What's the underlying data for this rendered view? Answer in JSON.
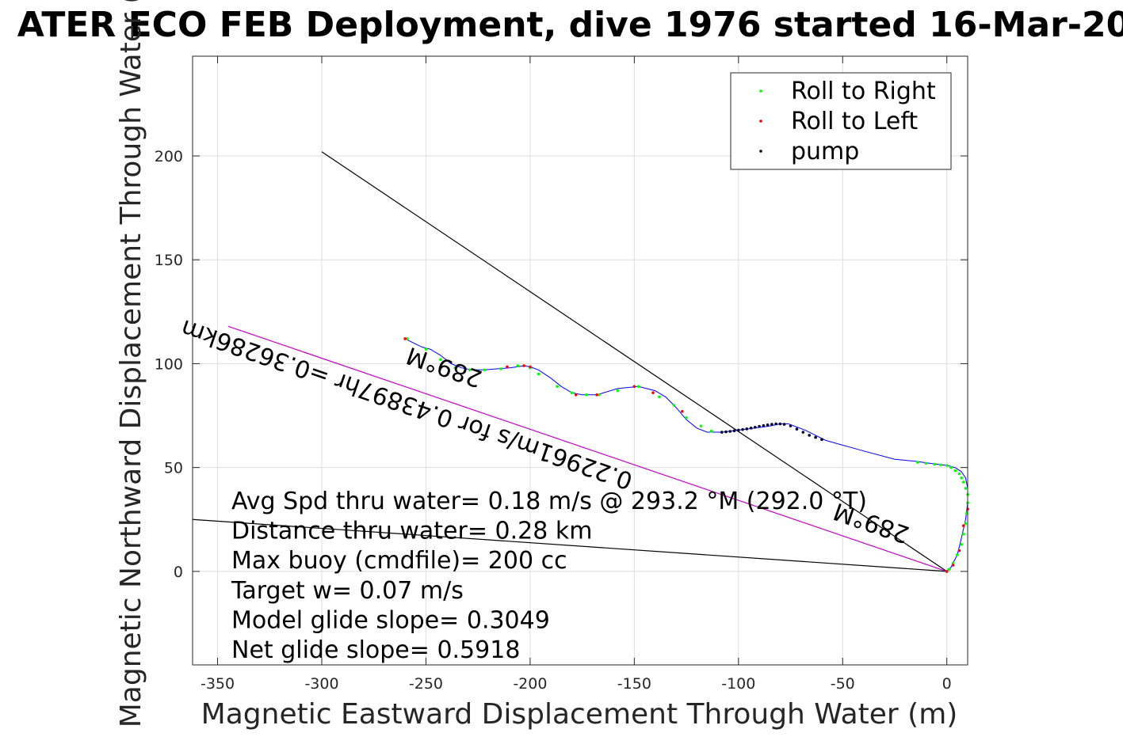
{
  "chart_data": {
    "type": "scatter",
    "title": "ATER ECO FEB Deployment, dive 1976 started 16-Mar-20",
    "xlabel": "Magnetic Eastward Displacement Through Water (m)",
    "ylabel": "Magnetic Northward Displacement Through Water (",
    "xlim": [
      -362,
      10
    ],
    "ylim": [
      -45,
      248
    ],
    "xticks": [
      -350,
      -300,
      -250,
      -200,
      -150,
      -100,
      -50,
      0
    ],
    "yticks": [
      0,
      50,
      100,
      150,
      200
    ],
    "xtick_labels": [
      "-350",
      "-300",
      "-250",
      "-200",
      "-150",
      "-100",
      "-50",
      "0"
    ],
    "ytick_labels": [
      "0",
      "50",
      "100",
      "150",
      "200"
    ],
    "grid": true,
    "legend": {
      "placement": "top-right",
      "entries": [
        {
          "label": "Roll to Right",
          "color": "#00ff00"
        },
        {
          "label": "Roll to Left",
          "color": "#ff0000"
        },
        {
          "label": "pump",
          "color": "#000000"
        }
      ]
    },
    "track": {
      "color": "#0000ff",
      "x": [
        0,
        2,
        5,
        7,
        9,
        10,
        10,
        9,
        7,
        4,
        0,
        -4,
        -8,
        -15,
        -25,
        -40,
        -58,
        -68,
        -76,
        -80,
        -85,
        -92,
        -100,
        -108,
        -115,
        -120,
        -125,
        -130,
        -135,
        -140,
        -148,
        -158,
        -168,
        -175,
        -180,
        -185,
        -190,
        -196,
        -200,
        -203,
        -206,
        -210,
        -216,
        -222,
        -228,
        -233,
        -238,
        -243,
        -248,
        -252,
        -256,
        -260
      ],
      "y": [
        0,
        2,
        8,
        16,
        25,
        33,
        40,
        45,
        48,
        50,
        51,
        51.5,
        52,
        53,
        54,
        58,
        63,
        68,
        71,
        71,
        70,
        69,
        68,
        67,
        67,
        69,
        73,
        79,
        84,
        87,
        89,
        88,
        85,
        85,
        86,
        89,
        93,
        97,
        98.5,
        99,
        98.5,
        98,
        97.5,
        97,
        97,
        98,
        100,
        104,
        107,
        108,
        110,
        112
      ]
    },
    "roll_right_x": [
      0,
      1,
      3,
      5,
      7,
      8,
      9,
      9.5,
      10,
      10,
      9,
      8,
      7,
      6,
      4,
      2,
      0,
      -3,
      -6,
      -10,
      -14,
      -108,
      -113,
      -118,
      -125,
      -131,
      -138,
      -148,
      -158,
      -167,
      -173,
      -180,
      -187,
      -196,
      -200,
      -206,
      -214,
      -222,
      -229,
      -236,
      -243,
      -250,
      -259
    ],
    "roll_right_y": [
      0,
      1,
      4,
      8,
      13,
      18,
      23,
      28,
      33,
      37,
      40,
      43,
      45,
      47,
      48.5,
      50,
      51,
      51.3,
      51.6,
      52,
      52.5,
      67,
      67.5,
      70,
      74,
      80,
      84,
      89,
      87,
      85,
      85,
      86,
      89,
      95,
      98,
      99,
      97.5,
      97,
      97,
      98,
      102,
      107,
      112
    ],
    "roll_left_x": [
      0,
      3,
      6,
      8,
      10,
      -150,
      -127,
      -141,
      -168,
      -178,
      -200,
      -203,
      -211,
      -260
    ],
    "roll_left_y": [
      0,
      3,
      10,
      22,
      30,
      89,
      77,
      86,
      85,
      85,
      98.5,
      99,
      98.5,
      112
    ],
    "pump_x": [
      -60,
      -63,
      -66,
      -69,
      -72,
      -75,
      -78,
      -80,
      -82,
      -84,
      -86,
      -88,
      -90,
      -92,
      -94,
      -96,
      -98,
      -100,
      -102,
      -104,
      -106,
      -108
    ],
    "pump_y": [
      63.5,
      64.5,
      65.5,
      67,
      68.5,
      70,
      70.8,
      71,
      71,
      70.8,
      70.5,
      70.2,
      69.8,
      69.4,
      69,
      68.6,
      68.3,
      68,
      67.7,
      67.4,
      67.2,
      67
    ],
    "lines": [
      {
        "name": "avg-through-water",
        "color": "#000000",
        "x": [
          0,
          -362
        ],
        "y": [
          0,
          25
        ]
      },
      {
        "name": "current",
        "color": "#000000",
        "x": [
          0,
          -300
        ],
        "y": [
          0,
          202
        ]
      },
      {
        "name": "dive-heading",
        "color": "#c800c8",
        "x": [
          0,
          -345
        ],
        "y": [
          0,
          118
        ]
      }
    ],
    "annotations": [
      {
        "text": "289°M",
        "x": -240,
        "y": 102
      },
      {
        "text": "0.22961m/s for 0.43897hr =0.36286km",
        "x": -258,
        "y": 84
      },
      {
        "text": "289°M",
        "x": -35,
        "y": 27
      }
    ],
    "stats": [
      "Avg Spd thru water=  0.18 m/s @ 293.2 °M (292.0 °T)",
      "Distance thru water=  0.28 km",
      "Max buoy (cmdfile)= 200 cc",
      "Target w= 0.07 m/s",
      "Model glide slope= 0.3049",
      "Net glide slope= 0.5918"
    ]
  }
}
